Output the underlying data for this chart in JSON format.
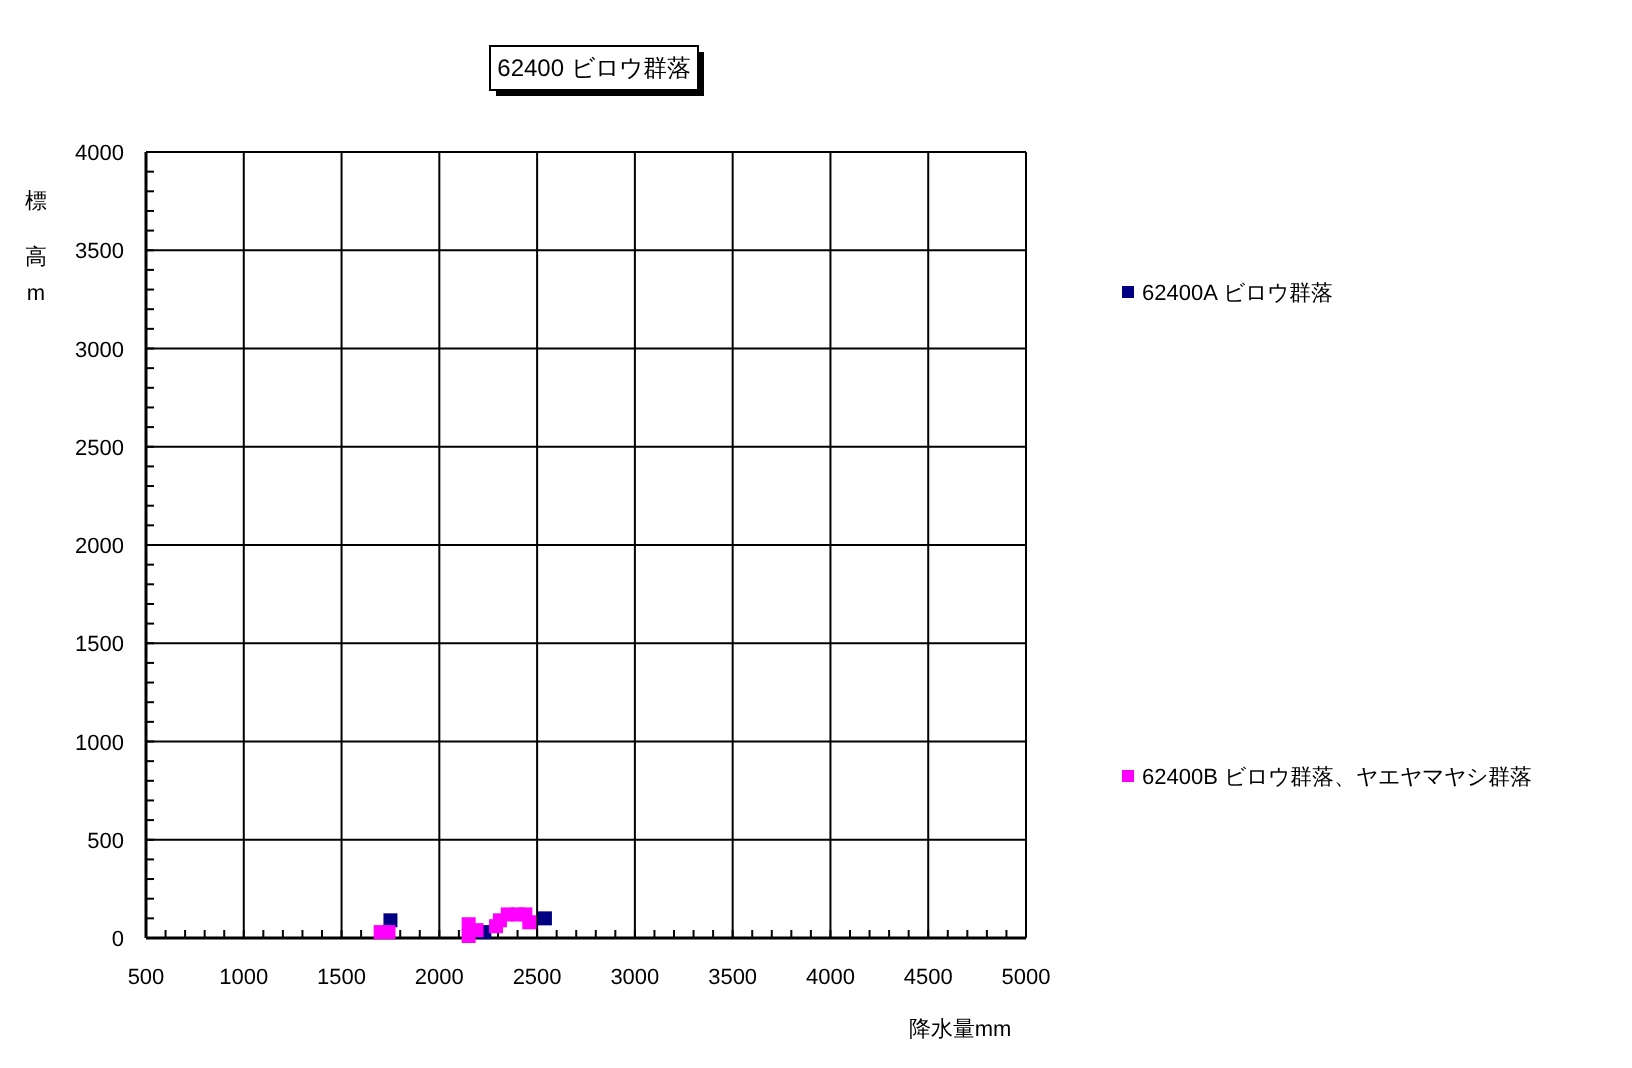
{
  "chart_data": {
    "type": "scatter",
    "title": "62400 ビロウ群落",
    "xlabel": "降水量mm",
    "ylabel": "標高m",
    "xlim": [
      500,
      5000
    ],
    "xticks": [
      500,
      {
        "value": 600,
        "label": null
      },
      {
        "value": 700,
        "label": null
      },
      {
        "value": 800,
        "label": null
      },
      {
        "value": 900,
        "label": null
      },
      1000,
      {
        "value": 1100,
        "label": null
      },
      {
        "value": 1200,
        "label": null
      },
      {
        "value": 1300,
        "label": null
      },
      {
        "value": 1400,
        "label": null
      },
      1500,
      {
        "value": 1600,
        "label": null
      },
      {
        "value": 1700,
        "label": null
      },
      {
        "value": 1800,
        "label": null
      },
      {
        "value": 1900,
        "label": null
      },
      2000,
      {
        "value": 2100,
        "label": null
      },
      {
        "value": 2200,
        "label": null
      },
      {
        "value": 2300,
        "label": null
      },
      {
        "value": 2400,
        "label": null
      },
      2500,
      {
        "value": 2600,
        "label": null
      },
      {
        "value": 2700,
        "label": null
      },
      {
        "value": 2800,
        "label": null
      },
      {
        "value": 2900,
        "label": null
      },
      3000,
      {
        "value": 3100,
        "label": null
      },
      {
        "value": 3200,
        "label": null
      },
      {
        "value": 3300,
        "label": null
      },
      {
        "value": 3400,
        "label": null
      },
      3500,
      {
        "value": 3600,
        "label": null
      },
      {
        "value": 3700,
        "label": null
      },
      {
        "value": 3800,
        "label": null
      },
      {
        "value": 3900,
        "label": null
      },
      4000,
      {
        "value": 4100,
        "label": null
      },
      {
        "value": 4200,
        "label": null
      },
      {
        "value": 4300,
        "label": null
      },
      {
        "value": 4400,
        "label": null
      },
      4500,
      {
        "value": 4600,
        "label": null
      },
      {
        "value": 4700,
        "label": null
      },
      {
        "value": 4800,
        "label": null
      },
      {
        "value": 4900,
        "label": null
      },
      5000
    ],
    "ylim": [
      0,
      4000
    ],
    "yticks": [
      0,
      {
        "value": 100,
        "label": null
      },
      {
        "value": 200,
        "label": null
      },
      {
        "value": 300,
        "label": null
      },
      {
        "value": 400,
        "label": null
      },
      500,
      {
        "value": 600,
        "label": null
      },
      {
        "value": 700,
        "label": null
      },
      {
        "value": 800,
        "label": null
      },
      {
        "value": 900,
        "label": null
      },
      1000,
      {
        "value": 1100,
        "label": null
      },
      {
        "value": 1200,
        "label": null
      },
      {
        "value": 1300,
        "label": null
      },
      {
        "value": 1400,
        "label": null
      },
      1500,
      {
        "value": 1600,
        "label": null
      },
      {
        "value": 1700,
        "label": null
      },
      {
        "value": 1800,
        "label": null
      },
      {
        "value": 1900,
        "label": null
      },
      2000,
      {
        "value": 2100,
        "label": null
      },
      {
        "value": 2200,
        "label": null
      },
      {
        "value": 2300,
        "label": null
      },
      {
        "value": 2400,
        "label": null
      },
      2500,
      {
        "value": 2600,
        "label": null
      },
      {
        "value": 2700,
        "label": null
      },
      {
        "value": 2800,
        "label": null
      },
      {
        "value": 2900,
        "label": null
      },
      3000,
      {
        "value": 3100,
        "label": null
      },
      {
        "value": 3200,
        "label": null
      },
      {
        "value": 3300,
        "label": null
      },
      {
        "value": 3400,
        "label": null
      },
      3500,
      {
        "value": 3600,
        "label": null
      },
      {
        "value": 3700,
        "label": null
      },
      {
        "value": 3800,
        "label": null
      },
      {
        "value": 3900,
        "label": null
      },
      4000
    ],
    "grid": true,
    "legend": "right",
    "marker": "square",
    "series": [
      {
        "name": "62400A ビロウ群落",
        "color": "#000080",
        "x": [
          1750,
          2230,
          2540
        ],
        "values": [
          90,
          30,
          100
        ]
      },
      {
        "name": "62400B ビロウ群落、ヤエヤマヤシ群落",
        "color": "#ff00ff",
        "x": [
          1700,
          1740,
          2150,
          2150,
          2190,
          2290,
          2310,
          2350,
          2400,
          2440,
          2460
        ],
        "values": [
          30,
          30,
          70,
          10,
          40,
          60,
          90,
          120,
          120,
          120,
          80
        ]
      }
    ]
  }
}
